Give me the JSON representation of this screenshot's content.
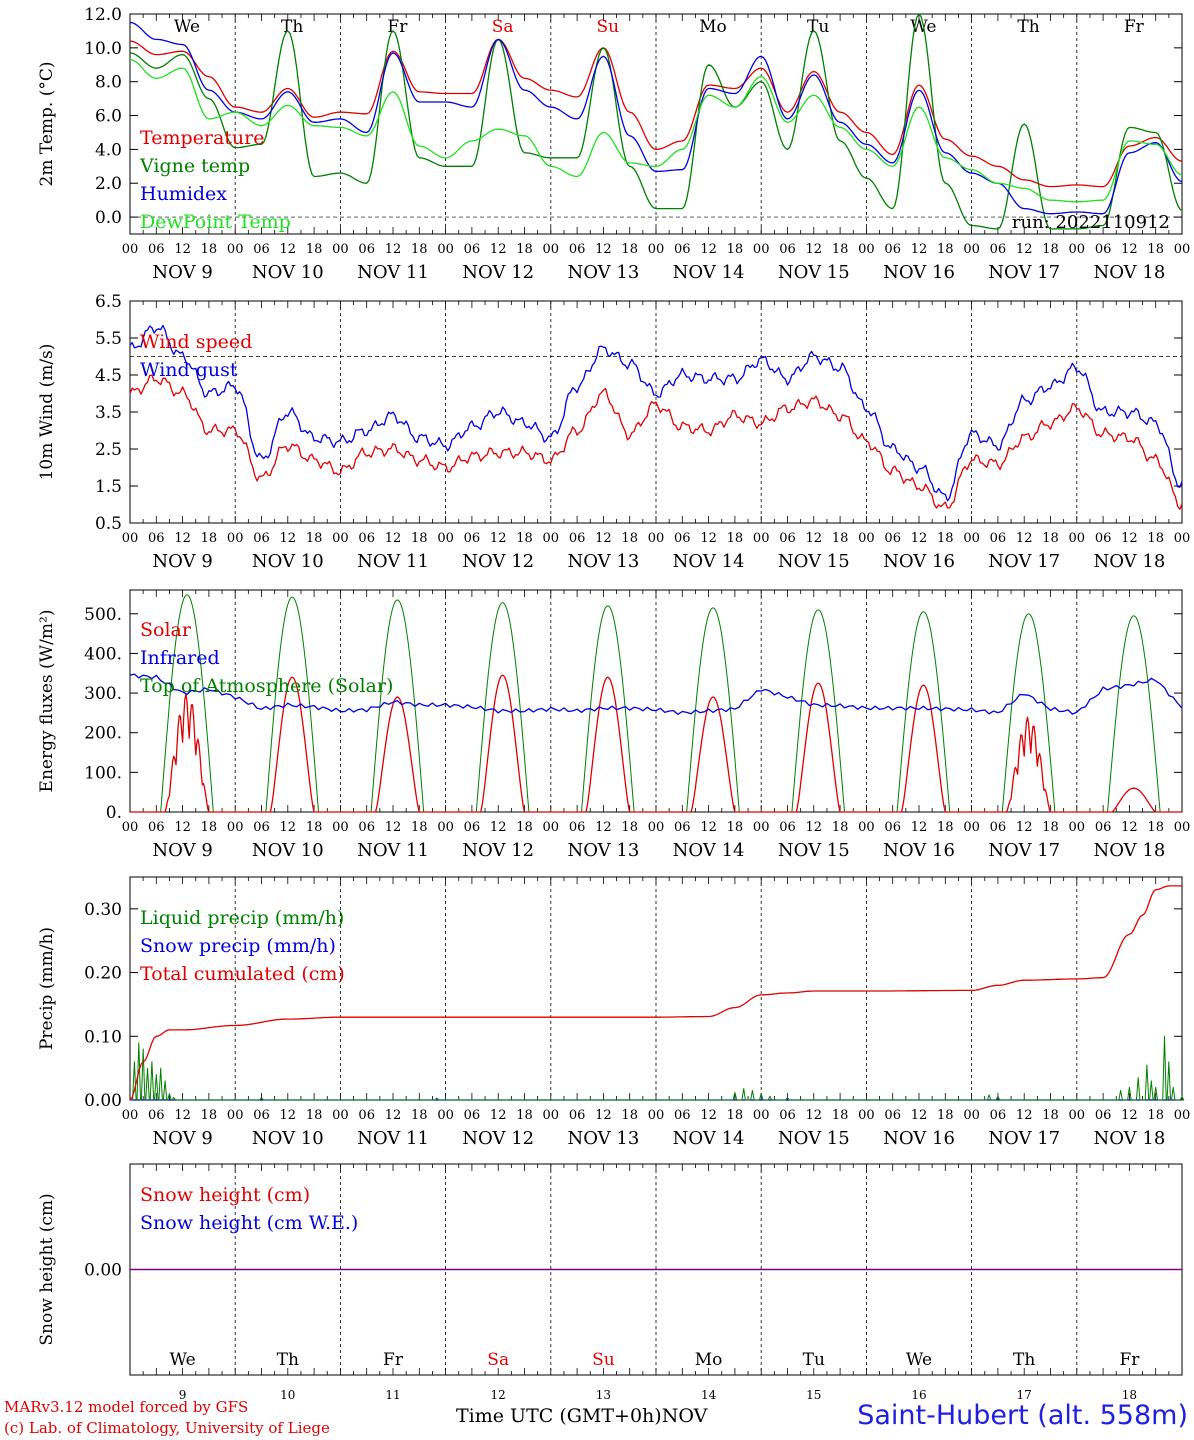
{
  "days": [
    {
      "abbr": "We",
      "weekend": false,
      "date": "NOV  9",
      "num": "9"
    },
    {
      "abbr": "Th",
      "weekend": false,
      "date": "NOV 10",
      "num": "10"
    },
    {
      "abbr": "Fr",
      "weekend": false,
      "date": "NOV 11",
      "num": "11"
    },
    {
      "abbr": "Sa",
      "weekend": true,
      "date": "NOV 12",
      "num": "12"
    },
    {
      "abbr": "Su",
      "weekend": true,
      "date": "NOV 13",
      "num": "13"
    },
    {
      "abbr": "Mo",
      "weekend": false,
      "date": "NOV 14",
      "num": "14"
    },
    {
      "abbr": "Tu",
      "weekend": false,
      "date": "NOV 15",
      "num": "15"
    },
    {
      "abbr": "We",
      "weekend": false,
      "date": "NOV 16",
      "num": "16"
    },
    {
      "abbr": "Th",
      "weekend": false,
      "date": "NOV 17",
      "num": "17"
    },
    {
      "abbr": "Fr",
      "weekend": false,
      "date": "NOV 18",
      "num": "18"
    }
  ],
  "hour_ticks": [
    "00",
    "06",
    "12",
    "18"
  ],
  "last_hour_tick": "00",
  "colors": {
    "red": "#e00000",
    "green": "#008000",
    "blue": "#0000e0",
    "lightgreen": "#20e020",
    "purple": "#800080",
    "weekend": "#e00000"
  },
  "chart_data": [
    {
      "type": "line",
      "ylabel": "2m Temp. (°C)",
      "ylim": [
        -1,
        12
      ],
      "yticks": [
        "12.0",
        "10.0",
        "8.0",
        "6.0",
        "4.0",
        "2.0",
        "0.0"
      ],
      "ytick_values": [
        12,
        10,
        8,
        6,
        4,
        2,
        0
      ],
      "ref_line": 0,
      "annotation": "run: 2022110912",
      "x_hours": [
        0,
        6,
        12,
        18,
        24,
        30,
        36,
        42,
        48,
        54,
        60,
        66,
        72,
        78,
        84,
        90,
        96,
        102,
        108,
        114,
        120,
        126,
        132,
        138,
        144,
        150,
        156,
        162,
        168,
        174,
        180,
        186,
        192,
        198,
        204,
        210,
        216,
        222,
        228,
        234,
        240
      ],
      "series": [
        {
          "name": "Temperature",
          "color": "red",
          "values": [
            10.4,
            9.6,
            9.8,
            8.3,
            6.5,
            6.2,
            7.6,
            5.9,
            6.2,
            6.1,
            9.8,
            7.4,
            7.3,
            7.3,
            10.5,
            8.2,
            7.5,
            7.1,
            10.0,
            6.2,
            4.0,
            4.5,
            7.8,
            7.6,
            8.8,
            6.2,
            8.6,
            6.2,
            5.0,
            3.7,
            7.8,
            4.6,
            3.6,
            3.0,
            2.2,
            1.8,
            1.9,
            1.8,
            4.2,
            4.7,
            3.3
          ]
        },
        {
          "name": "Vigne temp",
          "color": "green",
          "values": [
            9.7,
            8.8,
            9.6,
            7.0,
            4.1,
            4.3,
            11.0,
            2.4,
            2.6,
            2.0,
            11.0,
            3.5,
            3.0,
            3.0,
            10.5,
            3.8,
            3.5,
            3.5,
            10.0,
            3.0,
            0.5,
            0.5,
            9.0,
            6.5,
            8.0,
            4.0,
            11.0,
            4.5,
            2.3,
            0.5,
            12.0,
            2.0,
            -0.5,
            -0.7,
            5.5,
            -0.7,
            -0.7,
            -0.5,
            5.3,
            5.0,
            0.4
          ]
        },
        {
          "name": "Humidex",
          "color": "blue",
          "values": [
            11.5,
            10.5,
            10.2,
            7.5,
            6.2,
            5.8,
            7.4,
            5.6,
            5.8,
            5.0,
            9.7,
            6.8,
            6.8,
            6.5,
            10.5,
            7.5,
            6.5,
            5.8,
            9.5,
            4.8,
            2.7,
            2.8,
            7.6,
            7.3,
            9.5,
            5.8,
            8.4,
            5.6,
            4.3,
            3.2,
            7.5,
            3.8,
            2.6,
            2.0,
            0.5,
            0.2,
            0.3,
            0.2,
            3.8,
            4.4,
            2.1
          ]
        },
        {
          "name": "DewPoint Temp",
          "color": "lightgreen",
          "values": [
            9.3,
            8.2,
            8.8,
            5.8,
            6.2,
            5.4,
            6.6,
            5.4,
            5.3,
            4.8,
            7.4,
            4.2,
            3.5,
            4.5,
            5.2,
            4.8,
            3.0,
            2.4,
            5.0,
            3.2,
            3.0,
            4.0,
            7.2,
            6.5,
            8.3,
            5.6,
            7.2,
            5.3,
            4.0,
            3.0,
            6.5,
            3.5,
            2.8,
            2.0,
            1.7,
            1.0,
            0.9,
            1.0,
            4.5,
            4.3,
            2.5
          ]
        }
      ]
    },
    {
      "type": "line",
      "ylabel": "10m Wind (m/s)",
      "ylim": [
        0.5,
        6.5
      ],
      "yticks": [
        "6.5",
        "5.5",
        "4.5",
        "3.5",
        "2.5",
        "1.5",
        "0.5"
      ],
      "ytick_values": [
        6.5,
        5.5,
        4.5,
        3.5,
        2.5,
        1.5,
        0.5
      ],
      "ref_line": 5,
      "x_hours": [
        0,
        6,
        12,
        18,
        24,
        30,
        36,
        42,
        48,
        54,
        60,
        66,
        72,
        78,
        84,
        90,
        96,
        102,
        108,
        114,
        120,
        126,
        132,
        138,
        144,
        150,
        156,
        162,
        168,
        174,
        180,
        186,
        192,
        198,
        204,
        210,
        216,
        222,
        228,
        234,
        240
      ],
      "series": [
        {
          "name": "Wind speed",
          "color": "red",
          "values": [
            4.0,
            4.4,
            4.0,
            3.0,
            3.0,
            1.7,
            2.6,
            2.2,
            1.9,
            2.4,
            2.5,
            2.2,
            2.0,
            2.3,
            2.4,
            2.4,
            2.2,
            3.0,
            4.0,
            2.9,
            3.7,
            3.1,
            3.0,
            3.4,
            3.2,
            3.6,
            3.8,
            3.4,
            2.7,
            1.9,
            1.5,
            0.9,
            2.2,
            2.1,
            2.8,
            3.2,
            3.6,
            2.9,
            2.8,
            2.2,
            1.0
          ]
        },
        {
          "name": "Wind gust",
          "color": "blue",
          "values": [
            5.2,
            5.8,
            5.0,
            4.0,
            4.2,
            2.2,
            3.5,
            2.8,
            2.7,
            3.0,
            3.4,
            2.8,
            2.6,
            3.1,
            3.5,
            3.2,
            2.8,
            4.2,
            5.2,
            4.8,
            4.0,
            4.5,
            4.4,
            4.4,
            4.9,
            4.4,
            5.0,
            4.7,
            3.6,
            2.5,
            2.0,
            1.2,
            2.9,
            2.6,
            3.8,
            4.2,
            4.7,
            3.5,
            3.5,
            3.2,
            1.5
          ]
        }
      ]
    },
    {
      "type": "line",
      "ylabel": "Energy fluxes (W/m²)",
      "ylim": [
        0,
        560
      ],
      "yticks": [
        "500.",
        "400.",
        "300.",
        "200.",
        "100.",
        "0."
      ],
      "ytick_values": [
        500,
        400,
        300,
        200,
        100,
        0
      ],
      "solar_peaks": [
        300,
        340,
        290,
        345,
        340,
        290,
        325,
        320,
        240,
        60
      ],
      "toa_peaks": [
        548,
        542,
        535,
        528,
        520,
        515,
        510,
        505,
        500,
        495
      ],
      "ir_hours": [
        0,
        6,
        12,
        18,
        24,
        30,
        36,
        42,
        48,
        54,
        60,
        66,
        72,
        78,
        84,
        90,
        96,
        102,
        108,
        114,
        120,
        126,
        132,
        138,
        144,
        150,
        156,
        162,
        168,
        174,
        180,
        186,
        192,
        198,
        204,
        210,
        216,
        222,
        228,
        234,
        240
      ],
      "series": [
        {
          "name": "Solar",
          "color": "red"
        },
        {
          "name": "Infrared",
          "color": "blue",
          "values": [
            345,
            340,
            300,
            310,
            290,
            260,
            270,
            265,
            255,
            258,
            278,
            270,
            270,
            265,
            255,
            255,
            260,
            255,
            262,
            262,
            258,
            250,
            255,
            260,
            310,
            290,
            270,
            268,
            262,
            262,
            262,
            260,
            258,
            250,
            300,
            260,
            250,
            310,
            320,
            335,
            262
          ]
        },
        {
          "name": "Top of Atmosphere (Solar)",
          "color": "green"
        }
      ]
    },
    {
      "type": "line",
      "ylabel": "Precip (mm/h)",
      "ylim": [
        0,
        0.35
      ],
      "yticks": [
        "0.30",
        "0.20",
        "0.10",
        "0.00"
      ],
      "ytick_values": [
        0.3,
        0.2,
        0.1,
        0.0
      ],
      "x_hours": [
        0,
        3,
        6,
        9,
        12,
        24,
        36,
        48,
        72,
        96,
        120,
        132,
        138,
        144,
        150,
        156,
        168,
        192,
        198,
        204,
        216,
        222,
        228,
        231,
        234,
        237,
        240
      ],
      "series": [
        {
          "name": "Liquid precip (mm/h)",
          "color": "green",
          "spikes": [
            [
              1,
              0.06
            ],
            [
              2,
              0.09
            ],
            [
              3,
              0.08
            ],
            [
              4,
              0.05
            ],
            [
              5,
              0.06
            ],
            [
              6,
              0.04
            ],
            [
              7,
              0.05
            ],
            [
              8,
              0.03
            ],
            [
              9,
              0.01
            ],
            [
              10,
              0.004
            ],
            [
              30,
              0.004
            ],
            [
              70,
              0.003
            ],
            [
              138,
              0.012
            ],
            [
              140,
              0.018
            ],
            [
              142,
              0.015
            ],
            [
              144,
              0.01
            ],
            [
              146,
              0.006
            ],
            [
              150,
              0.004
            ],
            [
              196,
              0.008
            ],
            [
              198,
              0.006
            ],
            [
              226,
              0.015
            ],
            [
              228,
              0.02
            ],
            [
              230,
              0.035
            ],
            [
              232,
              0.055
            ],
            [
              233,
              0.03
            ],
            [
              234,
              0.02
            ],
            [
              236,
              0.1
            ],
            [
              237,
              0.06
            ],
            [
              238,
              0.02
            ],
            [
              240,
              0.005
            ]
          ]
        },
        {
          "name": "Snow precip (mm/h)",
          "color": "blue",
          "values": [
            0,
            0,
            0,
            0,
            0,
            0,
            0,
            0,
            0,
            0,
            0,
            0,
            0,
            0,
            0,
            0,
            0,
            0,
            0,
            0,
            0,
            0,
            0,
            0,
            0,
            0,
            0
          ]
        },
        {
          "name": "Total cumulated (cm)",
          "color": "red",
          "values": [
            0,
            0.06,
            0.1,
            0.11,
            0.11,
            0.117,
            0.127,
            0.13,
            0.13,
            0.13,
            0.13,
            0.131,
            0.145,
            0.165,
            0.168,
            0.171,
            0.171,
            0.172,
            0.18,
            0.188,
            0.19,
            0.192,
            0.26,
            0.29,
            0.33,
            0.336,
            0.336
          ]
        }
      ]
    },
    {
      "type": "line",
      "ylabel": "Snow height (cm)",
      "ylim": [
        -1,
        1
      ],
      "yticks": [
        "0.00"
      ],
      "ytick_values": [
        0
      ],
      "series": [
        {
          "name": "Snow height (cm)",
          "color": "red"
        },
        {
          "name": "Snow height (cm W.E.)",
          "color": "blue"
        }
      ]
    }
  ],
  "footer": {
    "line1": "MARv3.12 model forced by GFS",
    "line2": "(c) Lab. of Climatology, University of Liege",
    "axis_title": "Time UTC (GMT+0h)",
    "month": "NOV",
    "station": "Saint-Hubert (alt. 558m)"
  }
}
